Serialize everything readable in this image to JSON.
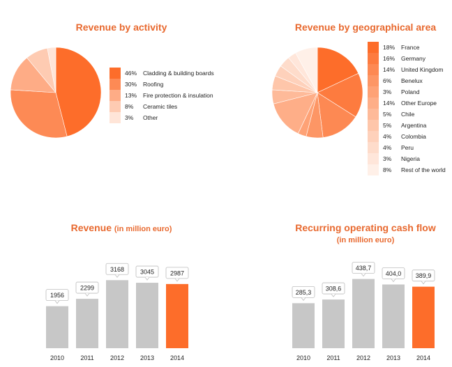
{
  "colors": {
    "accent": "#fd6d2a",
    "bar_grey": "#c7c7c7",
    "title": "#e8692f"
  },
  "chart_data": [
    {
      "id": "activity",
      "type": "pie",
      "title": "Revenue by activity",
      "slices": [
        {
          "pct": "46%",
          "label": "Cladding & building boards",
          "value": 46,
          "color": "#fd6d2a"
        },
        {
          "pct": "30%",
          "label": "Roofing",
          "value": 30,
          "color": "#fd8a55"
        },
        {
          "pct": "13%",
          "label": "Fire protection & insulation",
          "value": 13,
          "color": "#feac86"
        },
        {
          "pct": "8%",
          "label": "Ceramic tiles",
          "value": 8,
          "color": "#fecbb2"
        },
        {
          "pct": "3%",
          "label": "Other",
          "value": 3,
          "color": "#ffe5d8"
        }
      ]
    },
    {
      "id": "geo",
      "type": "pie",
      "title": "Revenue by geographical area",
      "slices": [
        {
          "pct": "18%",
          "label": "France",
          "value": 18,
          "color": "#fd6d2a"
        },
        {
          "pct": "16%",
          "label": "Germany",
          "value": 16,
          "color": "#fd7b3f"
        },
        {
          "pct": "14%",
          "label": "United Kingdom",
          "value": 14,
          "color": "#fd8953"
        },
        {
          "pct": "6%",
          "label": "Benelux",
          "value": 6,
          "color": "#fd9665"
        },
        {
          "pct": "3%",
          "label": "Poland",
          "value": 3,
          "color": "#fea276"
        },
        {
          "pct": "14%",
          "label": "Other Europe",
          "value": 14,
          "color": "#feae88"
        },
        {
          "pct": "5%",
          "label": "Chile",
          "value": 5,
          "color": "#feba99"
        },
        {
          "pct": "5%",
          "label": "Argentina",
          "value": 5,
          "color": "#fec6aa"
        },
        {
          "pct": "4%",
          "label": "Colombia",
          "value": 4,
          "color": "#fed1bb"
        },
        {
          "pct": "4%",
          "label": "Peru",
          "value": 4,
          "color": "#fedccb"
        },
        {
          "pct": "3%",
          "label": "Nigeria",
          "value": 3,
          "color": "#ffe6da"
        },
        {
          "pct": "8%",
          "label": "Rest of the world",
          "value": 8,
          "color": "#fff0e8"
        }
      ]
    },
    {
      "id": "revenue",
      "type": "bar",
      "title": "Revenue",
      "subtitle": "(in million euro)",
      "categories": [
        "2010",
        "2011",
        "2012",
        "2013",
        "2014"
      ],
      "values": [
        1956,
        2299,
        3168,
        3045,
        2987
      ],
      "labels": [
        "1956",
        "2299",
        "3168",
        "3045",
        "2987"
      ],
      "highlight_index": 4,
      "ylim": [
        0,
        4700
      ]
    },
    {
      "id": "cashflow",
      "type": "bar",
      "title": "Recurring operating cash flow",
      "subtitle": "(in million euro)",
      "categories": [
        "2010",
        "2011",
        "2012",
        "2013",
        "2014"
      ],
      "values": [
        285.3,
        308.6,
        438.7,
        404.0,
        389.9
      ],
      "labels": [
        "285,3",
        "308,6",
        "438,7",
        "404,0",
        "389,9"
      ],
      "highlight_index": 4,
      "ylim": [
        0,
        640
      ]
    }
  ]
}
